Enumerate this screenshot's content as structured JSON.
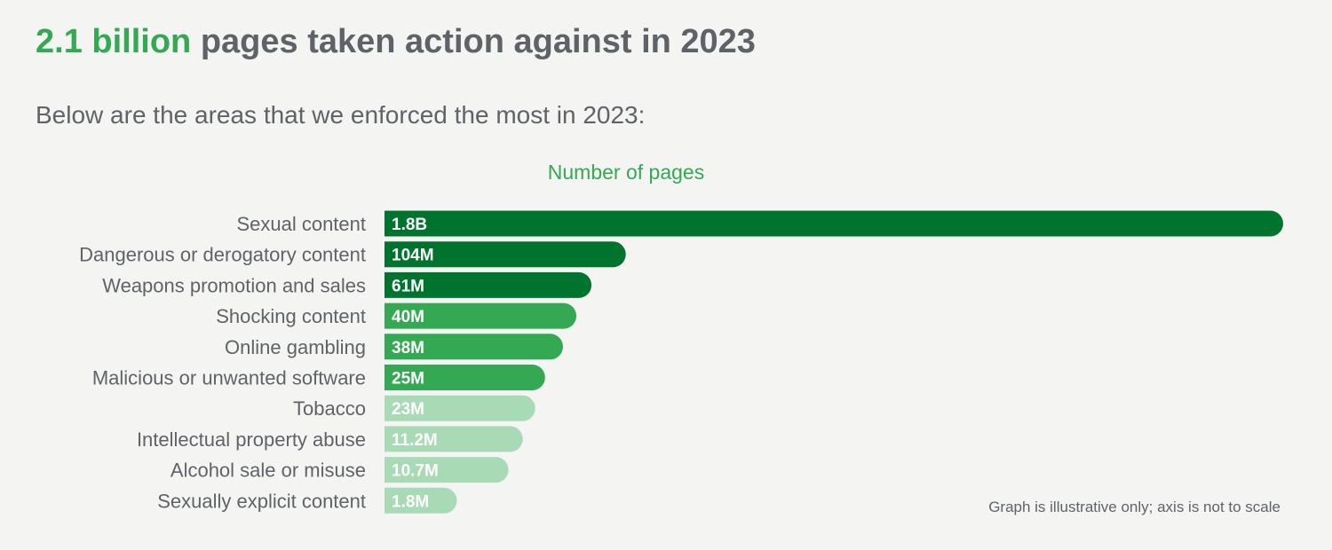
{
  "headline": {
    "accent": "2.1 billion",
    "rest": "pages taken action against in 2023"
  },
  "subtitle": "Below are the areas that we enforced the most in 2023:",
  "note": "Graph is illustrative only; axis is not to scale",
  "colors": {
    "background": "#f4f5f3",
    "text": "#5f6368",
    "accent": "#34a853",
    "dark_green": "#00732f",
    "mid_green": "#34a853",
    "light_green": "#a8dab5",
    "label_on_bar": "#ffffff"
  },
  "chart_data": {
    "type": "bar",
    "orientation": "horizontal",
    "title": "Number of pages",
    "scale_note": "not to scale",
    "categories": [
      "Sexual content",
      "Dangerous or derogatory content",
      "Weapons promotion and sales",
      "Shocking content",
      "Online gambling",
      "Malicious or unwanted software",
      "Tobacco",
      "Intellectual property abuse",
      "Alcohol sale or misuse",
      "Sexually explicit content"
    ],
    "value_labels": [
      "1.8B",
      "104M",
      "61M",
      "40M",
      "38M",
      "25M",
      "23M",
      "11.2M",
      "10.7M",
      "1.8M"
    ],
    "values": [
      1800000000,
      104000000,
      61000000,
      40000000,
      38000000,
      25000000,
      23000000,
      11200000,
      10700000,
      1800000
    ],
    "bar_levels": [
      1.0,
      0.2685,
      0.2303,
      0.2135,
      0.1986,
      0.1787,
      0.1678,
      0.1539,
      0.138,
      0.0805
    ],
    "color_groups": [
      "dark",
      "dark",
      "dark",
      "mid",
      "mid",
      "mid",
      "light",
      "light",
      "light",
      "light"
    ]
  }
}
